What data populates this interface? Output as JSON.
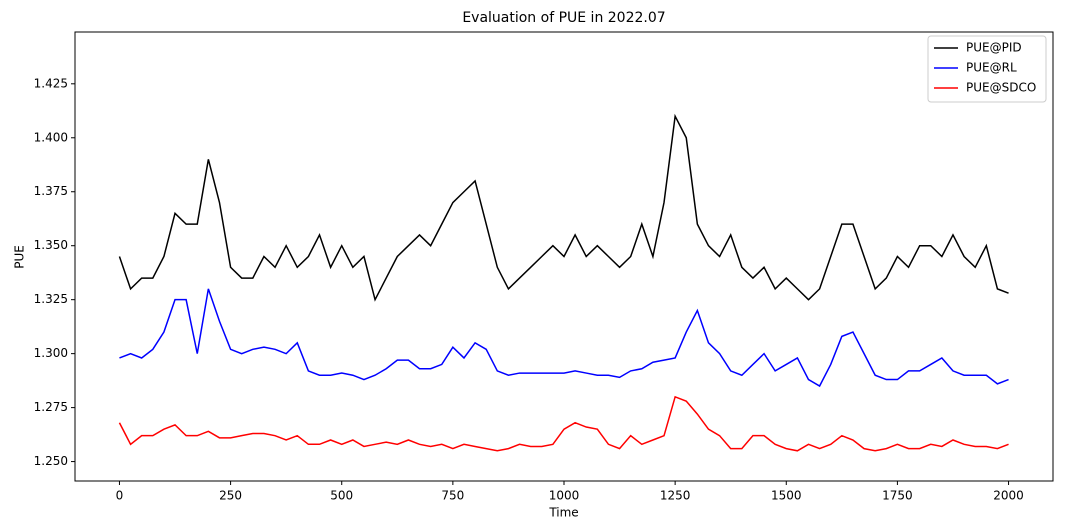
{
  "chart_data": {
    "type": "line",
    "title": "Evaluation of PUE in 2022.07",
    "x_label": "Time",
    "y_label": "PUE",
    "x": [
      0,
      25,
      50,
      75,
      100,
      125,
      150,
      175,
      200,
      225,
      250,
      275,
      300,
      325,
      350,
      375,
      400,
      425,
      450,
      475,
      500,
      525,
      550,
      575,
      600,
      625,
      650,
      675,
      700,
      725,
      750,
      775,
      800,
      825,
      850,
      875,
      900,
      925,
      950,
      975,
      1000,
      1025,
      1050,
      1075,
      1100,
      1125,
      1150,
      1175,
      1200,
      1225,
      1250,
      1275,
      1300,
      1325,
      1350,
      1375,
      1400,
      1425,
      1450,
      1475,
      1500,
      1525,
      1550,
      1575,
      1600,
      1625,
      1650,
      1675,
      1700,
      1725,
      1750,
      1775,
      1800,
      1825,
      1850,
      1875,
      1900,
      1925,
      1950,
      1975,
      2000
    ],
    "series": [
      {
        "name": "PUE@PID",
        "color": "#000000",
        "values": [
          1.345,
          1.33,
          1.335,
          1.335,
          1.345,
          1.365,
          1.36,
          1.36,
          1.39,
          1.37,
          1.34,
          1.335,
          1.335,
          1.345,
          1.34,
          1.35,
          1.34,
          1.345,
          1.355,
          1.34,
          1.35,
          1.34,
          1.345,
          1.325,
          1.335,
          1.345,
          1.35,
          1.355,
          1.35,
          1.36,
          1.37,
          1.375,
          1.38,
          1.36,
          1.34,
          1.33,
          1.335,
          1.34,
          1.345,
          1.35,
          1.345,
          1.355,
          1.345,
          1.35,
          1.345,
          1.34,
          1.345,
          1.36,
          1.345,
          1.37,
          1.41,
          1.4,
          1.36,
          1.35,
          1.345,
          1.355,
          1.34,
          1.335,
          1.34,
          1.33,
          1.335,
          1.33,
          1.325,
          1.33,
          1.345,
          1.36,
          1.36,
          1.345,
          1.33,
          1.335,
          1.345,
          1.34,
          1.35,
          1.35,
          1.345,
          1.355,
          1.345,
          1.34,
          1.35,
          1.33,
          1.328
        ]
      },
      {
        "name": "PUE@RL",
        "color": "#0000ff",
        "values": [
          1.298,
          1.3,
          1.298,
          1.302,
          1.31,
          1.325,
          1.325,
          1.3,
          1.33,
          1.315,
          1.302,
          1.3,
          1.302,
          1.303,
          1.302,
          1.3,
          1.305,
          1.292,
          1.29,
          1.29,
          1.291,
          1.29,
          1.288,
          1.29,
          1.293,
          1.297,
          1.297,
          1.293,
          1.293,
          1.295,
          1.303,
          1.298,
          1.305,
          1.302,
          1.292,
          1.29,
          1.291,
          1.291,
          1.291,
          1.291,
          1.291,
          1.292,
          1.291,
          1.29,
          1.29,
          1.289,
          1.292,
          1.293,
          1.296,
          1.297,
          1.298,
          1.31,
          1.32,
          1.305,
          1.3,
          1.292,
          1.29,
          1.295,
          1.3,
          1.292,
          1.295,
          1.298,
          1.288,
          1.285,
          1.295,
          1.308,
          1.31,
          1.3,
          1.29,
          1.288,
          1.288,
          1.292,
          1.292,
          1.295,
          1.298,
          1.292,
          1.29,
          1.29,
          1.29,
          1.286,
          1.288
        ]
      },
      {
        "name": "PUE@SDCO",
        "color": "#ff0000",
        "values": [
          1.268,
          1.258,
          1.262,
          1.262,
          1.265,
          1.267,
          1.262,
          1.262,
          1.264,
          1.261,
          1.261,
          1.262,
          1.263,
          1.263,
          1.262,
          1.26,
          1.262,
          1.258,
          1.258,
          1.26,
          1.258,
          1.26,
          1.257,
          1.258,
          1.259,
          1.258,
          1.26,
          1.258,
          1.257,
          1.258,
          1.256,
          1.258,
          1.257,
          1.256,
          1.255,
          1.256,
          1.258,
          1.257,
          1.257,
          1.258,
          1.265,
          1.268,
          1.266,
          1.265,
          1.258,
          1.256,
          1.262,
          1.258,
          1.26,
          1.262,
          1.28,
          1.278,
          1.272,
          1.265,
          1.262,
          1.256,
          1.256,
          1.262,
          1.262,
          1.258,
          1.256,
          1.255,
          1.258,
          1.256,
          1.258,
          1.262,
          1.26,
          1.256,
          1.255,
          1.256,
          1.258,
          1.256,
          1.256,
          1.258,
          1.257,
          1.26,
          1.258,
          1.257,
          1.257,
          1.256,
          1.258
        ]
      }
    ],
    "xlim": [
      -100,
      2100
    ],
    "ylim": [
      1.241,
      1.449
    ],
    "xticks": [
      0,
      250,
      500,
      750,
      1000,
      1250,
      1500,
      1750,
      2000
    ],
    "yticks": [
      {
        "value": 1.25,
        "label": "1.250"
      },
      1.275,
      {
        "value": 1.3,
        "label": "1.300"
      },
      1.325,
      {
        "value": 1.35,
        "label": "1.350"
      },
      1.375,
      {
        "value": 1.4,
        "label": "1.400"
      },
      1.425
    ],
    "legend": "upper right"
  }
}
